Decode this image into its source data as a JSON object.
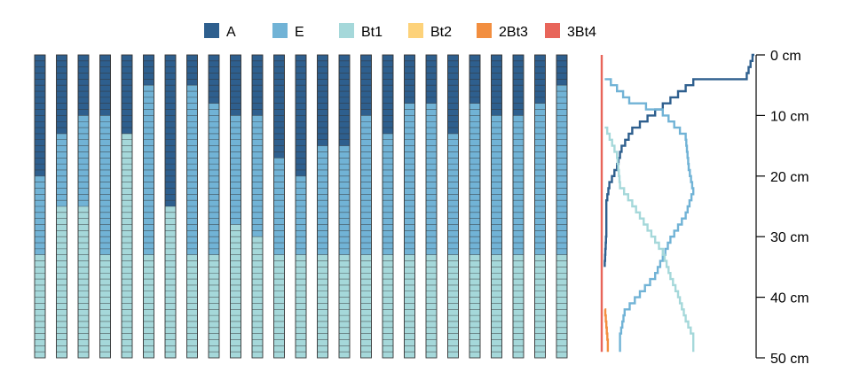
{
  "chart_data": {
    "type": "stacked-profile",
    "legend": [
      {
        "name": "A",
        "color": "#2E5F8E"
      },
      {
        "name": "E",
        "color": "#71B3D6"
      },
      {
        "name": "Bt1",
        "color": "#A5D8DA"
      },
      {
        "name": "Bt2",
        "color": "#FDD27A"
      },
      {
        "name": "2Bt3",
        "color": "#F28E3F"
      },
      {
        "name": "3Bt4",
        "color": "#E8655A"
      }
    ],
    "depth_axis": {
      "ticks": [
        "0 cm",
        "10 cm",
        "20 cm",
        "30 cm",
        "40 cm",
        "50 cm"
      ],
      "range_cm": [
        0,
        50
      ]
    },
    "profiles_boundaries_cm": [
      [
        20,
        33,
        50
      ],
      [
        13,
        25,
        50
      ],
      [
        10,
        25,
        50
      ],
      [
        10,
        33,
        50
      ],
      [
        13,
        13,
        50
      ],
      [
        5,
        33,
        50
      ],
      [
        25,
        25,
        50
      ],
      [
        5,
        33,
        50
      ],
      [
        8,
        33,
        50
      ],
      [
        10,
        28,
        50
      ],
      [
        10,
        30,
        50
      ],
      [
        17,
        33,
        50
      ],
      [
        20,
        33,
        50
      ],
      [
        15,
        33,
        50
      ],
      [
        15,
        33,
        50
      ],
      [
        10,
        33,
        50
      ],
      [
        13,
        33,
        50
      ],
      [
        8,
        33,
        50
      ],
      [
        8,
        33,
        50
      ],
      [
        13,
        33,
        50
      ],
      [
        8,
        33,
        50
      ],
      [
        10,
        33,
        50
      ],
      [
        10,
        33,
        50
      ],
      [
        8,
        33,
        50
      ],
      [
        5,
        33,
        50
      ]
    ],
    "probability_curves": [
      {
        "name": "A",
        "points": [
          [
            0,
            1.0
          ],
          [
            4,
            0.95
          ],
          [
            5,
            0.6
          ],
          [
            9,
            0.4
          ],
          [
            11,
            0.3
          ],
          [
            13,
            0.2
          ],
          [
            16,
            0.13
          ],
          [
            19,
            0.1
          ],
          [
            22,
            0.05
          ],
          [
            25,
            0.03
          ],
          [
            30,
            0.03
          ],
          [
            35,
            0.02
          ]
        ]
      },
      {
        "name": "E",
        "points": [
          [
            4,
            0.02
          ],
          [
            8,
            0.18
          ],
          [
            10,
            0.4
          ],
          [
            14,
            0.55
          ],
          [
            19,
            0.57
          ],
          [
            23,
            0.6
          ],
          [
            27,
            0.55
          ],
          [
            31,
            0.45
          ],
          [
            37,
            0.35
          ],
          [
            40,
            0.25
          ],
          [
            43,
            0.15
          ],
          [
            47,
            0.12
          ],
          [
            49,
            0.12
          ]
        ]
      },
      {
        "name": "Bt1",
        "points": [
          [
            12,
            0.02
          ],
          [
            17,
            0.1
          ],
          [
            22,
            0.12
          ],
          [
            25,
            0.2
          ],
          [
            29,
            0.3
          ],
          [
            33,
            0.4
          ],
          [
            37,
            0.45
          ],
          [
            40,
            0.5
          ],
          [
            44,
            0.55
          ],
          [
            47,
            0.6
          ],
          [
            49,
            0.6
          ]
        ]
      },
      {
        "name": "2Bt3",
        "points": [
          [
            42,
            0.02
          ],
          [
            45,
            0.03
          ],
          [
            48,
            0.04
          ],
          [
            49,
            0.04
          ]
        ]
      },
      {
        "name": "3Bt4",
        "points": [
          [
            0,
            0.0
          ],
          [
            49,
            0.0
          ]
        ]
      }
    ]
  }
}
